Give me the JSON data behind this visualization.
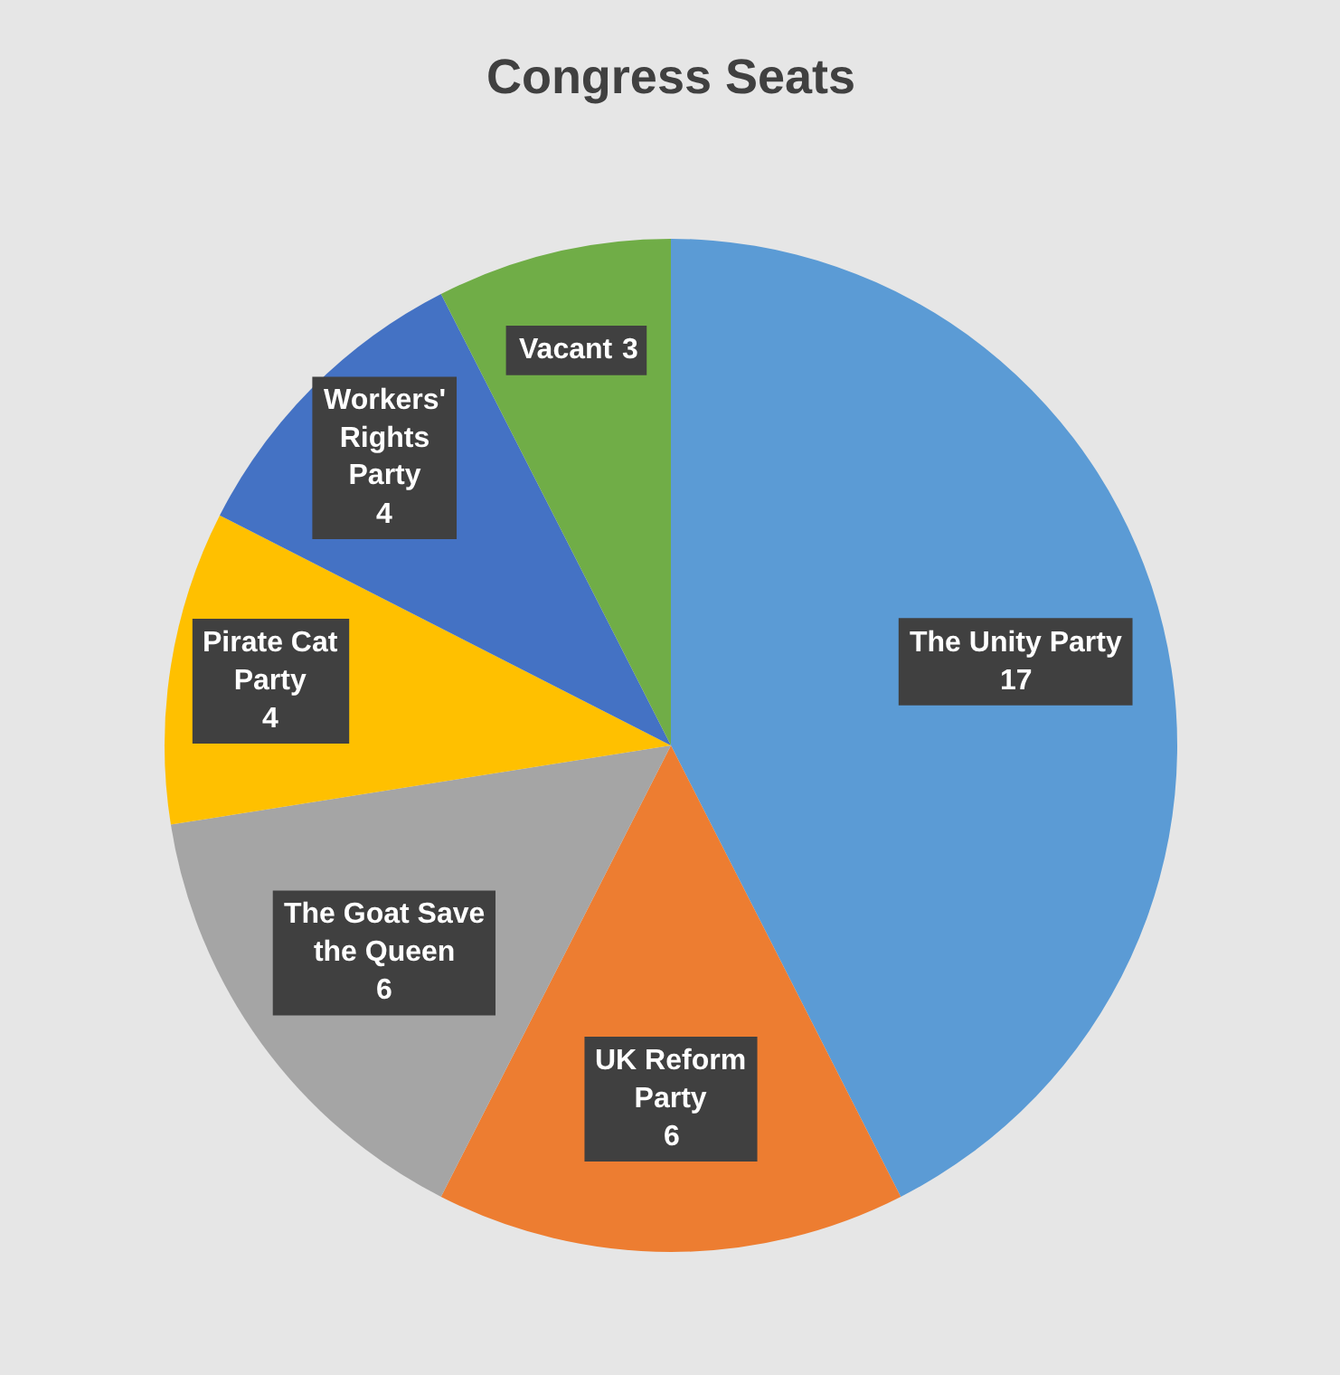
{
  "chart_data": {
    "type": "pie",
    "title": "Congress Seats",
    "categories": [
      "The Unity Party",
      "UK Reform Party",
      "The Goat Save the Queen",
      "Pirate Cat Party",
      "Workers' Rights Party",
      "Vacant"
    ],
    "values": [
      17,
      6,
      6,
      4,
      4,
      3
    ],
    "colors": [
      "#5b9bd5",
      "#ed7d31",
      "#a5a5a5",
      "#ffc000",
      "#4472c4",
      "#70ad47"
    ],
    "data_labels": true,
    "legend": false
  }
}
